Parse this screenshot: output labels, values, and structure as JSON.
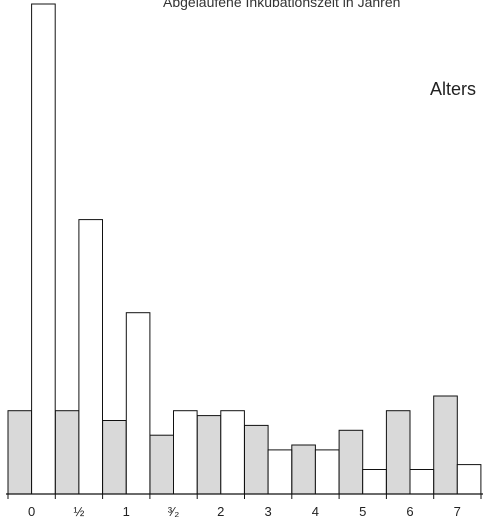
{
  "top_caption": "Abgelaufene Inkubationszeit in Jahren",
  "side_label": "Alters",
  "chart_data": {
    "type": "bar",
    "categories": [
      "0",
      "½",
      "1",
      "³⁄₂",
      "2",
      "3",
      "4",
      "5",
      "6",
      "7"
    ],
    "ylim": [
      0,
      100
    ],
    "series": [
      {
        "fill": "#d9d9d9",
        "values": [
          17,
          17,
          15,
          12,
          16,
          14,
          10,
          13,
          17,
          20
        ]
      },
      {
        "fill": "#ffffff",
        "values": [
          100,
          56,
          37,
          17,
          17,
          9,
          9,
          5,
          5,
          6
        ]
      }
    ],
    "grid": false,
    "legend": "none"
  }
}
